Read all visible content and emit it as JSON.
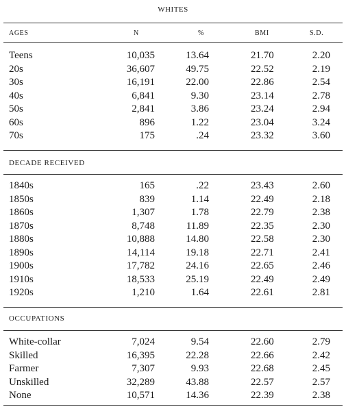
{
  "title": "WHITES",
  "columns": [
    "AGES",
    "N",
    "%",
    "BMI",
    "S.D."
  ],
  "sections": [
    {
      "title": "",
      "rows": [
        {
          "label": "Teens",
          "n": "10,035",
          "pct": "13.64",
          "bmi": "21.70",
          "sd": "2.20"
        },
        {
          "label": "20s",
          "n": "36,607",
          "pct": "49.75",
          "bmi": "22.52",
          "sd": "2.19"
        },
        {
          "label": "30s",
          "n": "16,191",
          "pct": "22.00",
          "bmi": "22.86",
          "sd": "2.54"
        },
        {
          "label": "40s",
          "n": "6,841",
          "pct": "9.30",
          "bmi": "23.14",
          "sd": "2.78"
        },
        {
          "label": "50s",
          "n": "2,841",
          "pct": "3.86",
          "bmi": "23.24",
          "sd": "2.94"
        },
        {
          "label": "60s",
          "n": "896",
          "pct": "1.22",
          "bmi": "23.04",
          "sd": "3.24"
        },
        {
          "label": "70s",
          "n": "175",
          "pct": ".24",
          "bmi": "23.32",
          "sd": "3.60"
        }
      ]
    },
    {
      "title": "DECADE RECEIVED",
      "rows": [
        {
          "label": "1840s",
          "n": "165",
          "pct": ".22",
          "bmi": "23.43",
          "sd": "2.60"
        },
        {
          "label": "1850s",
          "n": "839",
          "pct": "1.14",
          "bmi": "22.49",
          "sd": "2.18"
        },
        {
          "label": "1860s",
          "n": "1,307",
          "pct": "1.78",
          "bmi": "22.79",
          "sd": "2.38"
        },
        {
          "label": "1870s",
          "n": "8,748",
          "pct": "11.89",
          "bmi": "22.35",
          "sd": "2.30"
        },
        {
          "label": "1880s",
          "n": "10,888",
          "pct": "14.80",
          "bmi": "22.58",
          "sd": "2.30"
        },
        {
          "label": "1890s",
          "n": "14,114",
          "pct": "19.18",
          "bmi": "22.71",
          "sd": "2.41"
        },
        {
          "label": "1900s",
          "n": "17,782",
          "pct": "24.16",
          "bmi": "22.65",
          "sd": "2.46"
        },
        {
          "label": "1910s",
          "n": "18,533",
          "pct": "25.19",
          "bmi": "22.49",
          "sd": "2.49"
        },
        {
          "label": "1920s",
          "n": "1,210",
          "pct": "1.64",
          "bmi": "22.61",
          "sd": "2.81"
        }
      ]
    },
    {
      "title": "OCCUPATIONS",
      "rows": [
        {
          "label": "White-collar",
          "n": "7,024",
          "pct": "9.54",
          "bmi": "22.60",
          "sd": "2.79"
        },
        {
          "label": "Skilled",
          "n": "16,395",
          "pct": "22.28",
          "bmi": "22.66",
          "sd": "2.42"
        },
        {
          "label": "Farmer",
          "n": "7,307",
          "pct": "9.93",
          "bmi": "22.68",
          "sd": "2.45"
        },
        {
          "label": "Unskilled",
          "n": "32,289",
          "pct": "43.88",
          "bmi": "22.57",
          "sd": "2.57"
        },
        {
          "label": "None",
          "n": "10,571",
          "pct": "14.36",
          "bmi": "22.39",
          "sd": "2.38"
        }
      ]
    }
  ]
}
